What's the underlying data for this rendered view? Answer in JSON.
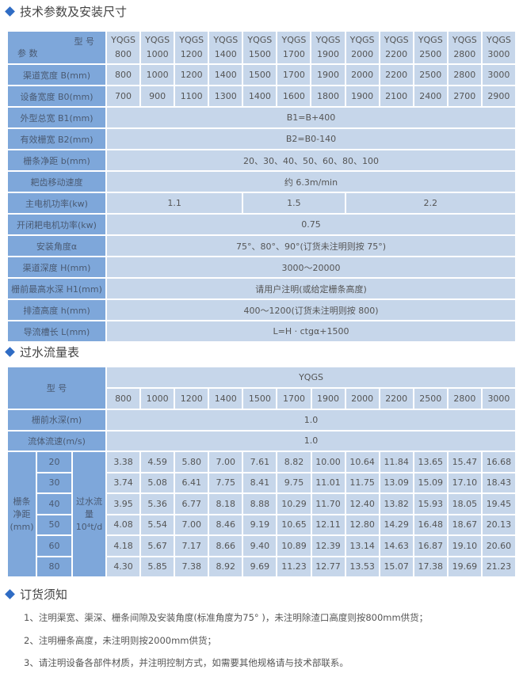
{
  "section1": {
    "title": "技术参数及安装尺寸",
    "header_model": "型 号",
    "header_param": "参 数",
    "model_prefix": "YQGS",
    "models": [
      "800",
      "1000",
      "1200",
      "1400",
      "1500",
      "1700",
      "1900",
      "2000",
      "2200",
      "2500",
      "2800",
      "3000"
    ],
    "rows": [
      {
        "label": "渠道宽度 B(mm)",
        "values": [
          "800",
          "1000",
          "1200",
          "1400",
          "1500",
          "1700",
          "1900",
          "2000",
          "2200",
          "2500",
          "2800",
          "3000"
        ]
      },
      {
        "label": "设备宽度 B0(mm)",
        "values": [
          "700",
          "900",
          "1100",
          "1300",
          "1400",
          "1600",
          "1800",
          "1900",
          "2100",
          "2400",
          "2700",
          "2900"
        ]
      }
    ],
    "span_rows": [
      {
        "label": "外型总宽 B1(mm)",
        "value": "B1=B+400"
      },
      {
        "label": "有效栅宽 B2(mm)",
        "value": "B2=B0-140"
      },
      {
        "label": "栅条净距 b(mm)",
        "value": "20、30、40、50、60、80、100"
      },
      {
        "label": "耙齿移动速度",
        "value": "约 6.3m/min"
      }
    ],
    "motor": {
      "label": "主电机功率(kw)",
      "values": [
        "1.1",
        "1.5",
        "2.2"
      ]
    },
    "span_rows2": [
      {
        "label": "开闭耙电机功率(kw)",
        "value": "0.75"
      },
      {
        "label": "安装角度α",
        "value": "75°、80°、90°(订货未注明则按 75°)"
      },
      {
        "label": "渠道深度 H(mm)",
        "value": "3000～20000"
      },
      {
        "label": "栅前最高水深 H1(mm)",
        "value": "请用户注明(或给定栅条高度)"
      },
      {
        "label": "排渣高度 h(mm)",
        "value": "400～1200(订货未注明则按 800)"
      },
      {
        "label": "导流槽长 L(mm)",
        "value": "L=H · ctgα+1500"
      }
    ]
  },
  "section2": {
    "title": "过水流量表",
    "header_model": "型 号",
    "model_prefix": "YQGS",
    "models": [
      "800",
      "1000",
      "1200",
      "1400",
      "1500",
      "1700",
      "1900",
      "2000",
      "2200",
      "2500",
      "2800",
      "3000"
    ],
    "depth_label": "栅前水深(m)",
    "depth_value": "1.0",
    "speed_label": "流体流速(m/s)",
    "speed_value": "1.0",
    "gap_label": "栅条净距(mm)",
    "flow_label": "过水流量10⁴t/d",
    "rows": [
      {
        "gap": "20",
        "values": [
          "3.38",
          "4.59",
          "5.80",
          "7.00",
          "7.61",
          "8.82",
          "10.00",
          "10.64",
          "11.84",
          "13.65",
          "15.47",
          "16.68"
        ]
      },
      {
        "gap": "30",
        "values": [
          "3.74",
          "5.08",
          "6.41",
          "7.75",
          "8.41",
          "9.75",
          "11.01",
          "11.75",
          "13.09",
          "15.09",
          "17.10",
          "18.43"
        ]
      },
      {
        "gap": "40",
        "values": [
          "3.95",
          "5.36",
          "6.77",
          "8.18",
          "8.88",
          "10.29",
          "11.70",
          "12.40",
          "13.82",
          "15.93",
          "18.05",
          "19.45"
        ]
      },
      {
        "gap": "50",
        "values": [
          "4.08",
          "5.54",
          "7.00",
          "8.46",
          "9.19",
          "10.65",
          "12.11",
          "12.80",
          "14.29",
          "16.48",
          "18.67",
          "20.13"
        ]
      },
      {
        "gap": "60",
        "values": [
          "4.18",
          "5.67",
          "7.17",
          "8.66",
          "9.40",
          "10.89",
          "12.39",
          "13.14",
          "14.63",
          "16.87",
          "19.10",
          "20.60"
        ]
      },
      {
        "gap": "80",
        "values": [
          "4.30",
          "5.85",
          "7.38",
          "8.92",
          "9.69",
          "11.23",
          "12.77",
          "13.53",
          "15.07",
          "17.38",
          "19.69",
          "21.23"
        ]
      }
    ]
  },
  "section3": {
    "title": "订货须知",
    "notes": [
      "1、注明渠宽、渠深、栅条间隙及安装角度(标准角度为75° )，未注明除渣口高度则按800mm供货；",
      "2、注明栅条高度，未注明则按2000mm供货；",
      "3、请注明设备各部件材质，并注明控制方式，如需要其他规格请与技术部联系。"
    ]
  },
  "colors": {
    "accent": "#2f6cc4",
    "label_cell": "#7ea7da",
    "data_cell": "#c6d6ea"
  }
}
